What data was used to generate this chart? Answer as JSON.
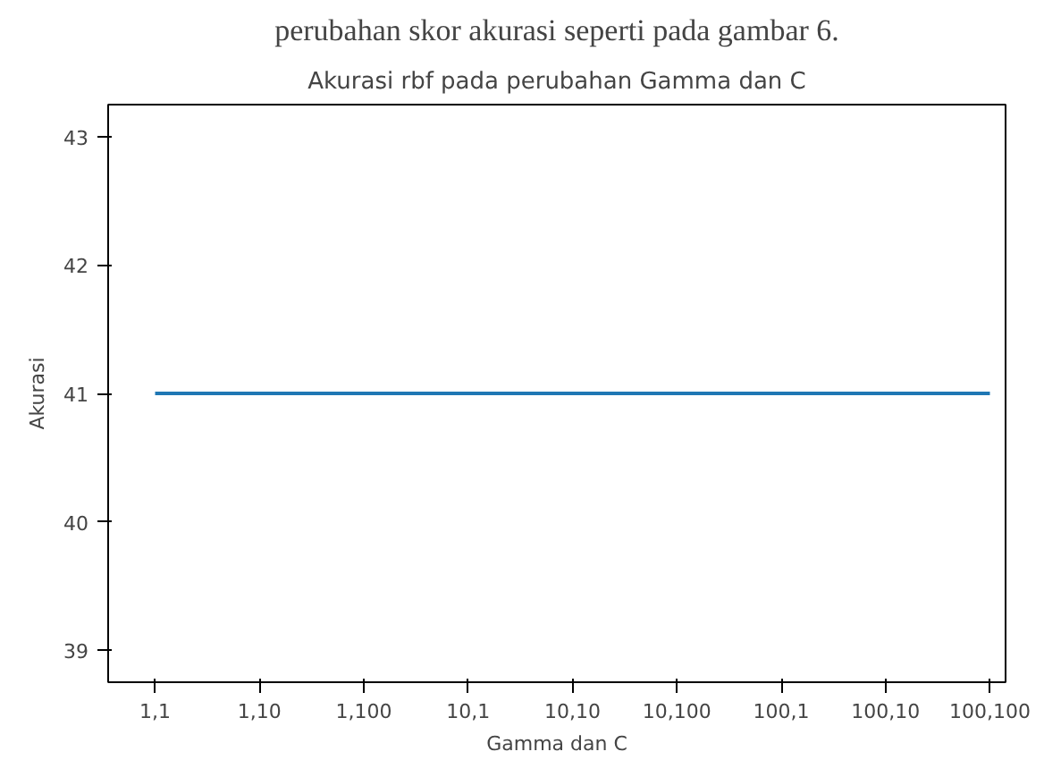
{
  "chart_data": {
    "type": "line",
    "title": "Akurasi rbf pada perubahan Gamma dan C",
    "xlabel": "Gamma dan C",
    "ylabel": "Akurasi",
    "annotations": [
      "perubahan skor akurasi seperti pada gambar 6."
    ],
    "categories": [
      "1,1",
      "1,10",
      "1,100",
      "10,1",
      "10,10",
      "10,100",
      "100,1",
      "100,10",
      "100,100"
    ],
    "series": [
      {
        "color": "#1f77b4",
        "values": [
          41,
          41,
          41,
          41,
          41,
          41,
          41,
          41,
          41
        ]
      }
    ],
    "ylim": [
      38.75,
      43.25
    ],
    "yticks": [
      39,
      40,
      41,
      42,
      43
    ],
    "line_style": "solid"
  }
}
